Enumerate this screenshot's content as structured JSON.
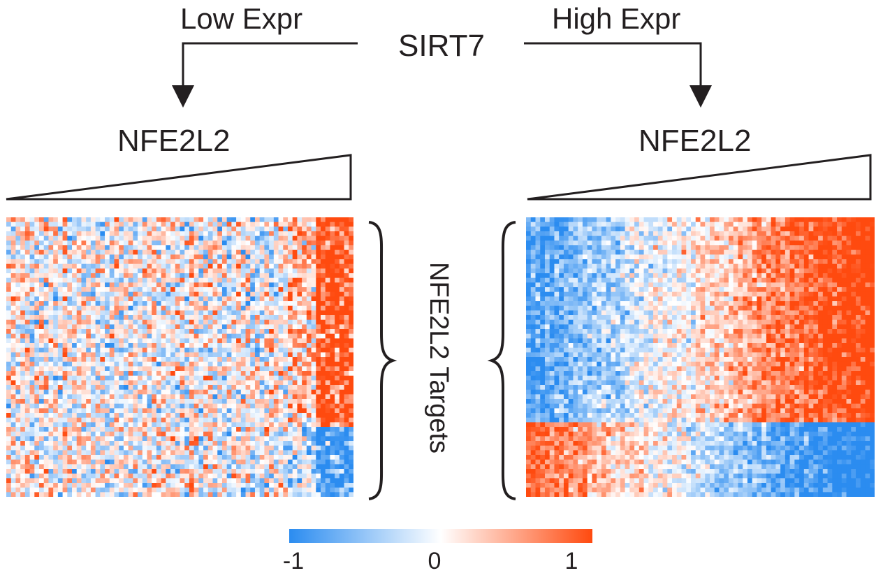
{
  "header": {
    "title": "SIRT7",
    "low_label": "Low Expr",
    "high_label": "High Expr"
  },
  "panels": [
    {
      "label": "NFE2L2",
      "group": "low"
    },
    {
      "label": "NFE2L2",
      "group": "high"
    }
  ],
  "targets_label": "NFE2L2 Targets",
  "colorbar": {
    "tick_labels": [
      "-1",
      "0",
      "1"
    ],
    "colors": {
      "low": "#2b8cf0",
      "mid": "#ffffff",
      "high": "#ff4a0f"
    }
  },
  "colors": {
    "ink": "#231f20"
  }
}
